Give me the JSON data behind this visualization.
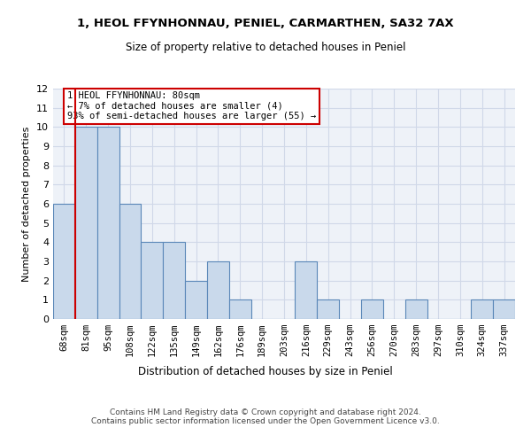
{
  "title": "1, HEOL FFYNHONNAU, PENIEL, CARMARTHEN, SA32 7AX",
  "subtitle": "Size of property relative to detached houses in Peniel",
  "xlabel": "Distribution of detached houses by size in Peniel",
  "ylabel": "Number of detached properties",
  "footer_line1": "Contains HM Land Registry data © Crown copyright and database right 2024.",
  "footer_line2": "Contains public sector information licensed under the Open Government Licence v3.0.",
  "categories": [
    "68sqm",
    "81sqm",
    "95sqm",
    "108sqm",
    "122sqm",
    "135sqm",
    "149sqm",
    "162sqm",
    "176sqm",
    "189sqm",
    "203sqm",
    "216sqm",
    "229sqm",
    "243sqm",
    "256sqm",
    "270sqm",
    "283sqm",
    "297sqm",
    "310sqm",
    "324sqm",
    "337sqm"
  ],
  "values": [
    6,
    10,
    10,
    6,
    4,
    4,
    2,
    3,
    1,
    0,
    0,
    3,
    1,
    0,
    1,
    0,
    1,
    0,
    0,
    1,
    1
  ],
  "bar_color": "#c9d9eb",
  "bar_edge_color": "#5a87b8",
  "subject_line_color": "#cc0000",
  "subject_bar_index": 1,
  "ylim": [
    0,
    12
  ],
  "yticks": [
    0,
    1,
    2,
    3,
    4,
    5,
    6,
    7,
    8,
    9,
    10,
    11,
    12
  ],
  "annotation_text": "1 HEOL FFYNHONNAU: 80sqm\n← 7% of detached houses are smaller (4)\n93% of semi-detached houses are larger (55) →",
  "annotation_box_color": "#cc0000",
  "grid_color": "#d0d8e8",
  "bg_color": "#eef2f8"
}
